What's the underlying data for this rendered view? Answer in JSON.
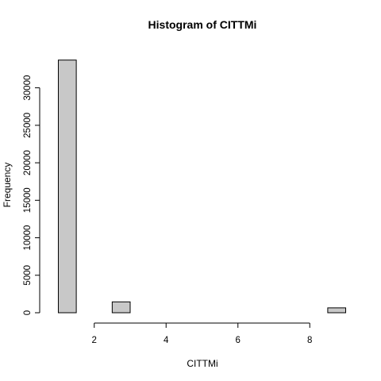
{
  "chart_data": {
    "type": "bar",
    "title": "Histogram of CITTMi",
    "xlabel": "CITTMi",
    "ylabel": "Frequency",
    "xlim": [
      1,
      9
    ],
    "ylim": [
      0,
      34000
    ],
    "x_ticks": [
      2,
      4,
      6,
      8
    ],
    "y_ticks": [
      0,
      5000,
      10000,
      15000,
      20000,
      25000,
      30000
    ],
    "bin_edges": [
      1.0,
      1.5,
      2.0,
      2.5,
      3.0,
      3.5,
      4.0,
      4.5,
      5.0,
      5.5,
      6.0,
      6.5,
      7.0,
      7.5,
      8.0,
      8.5,
      9.0
    ],
    "values": [
      33700,
      0,
      0,
      1450,
      0,
      0,
      0,
      0,
      0,
      0,
      0,
      0,
      0,
      0,
      0,
      650
    ],
    "bar_fill": "#c8c8c8",
    "grid": false
  }
}
